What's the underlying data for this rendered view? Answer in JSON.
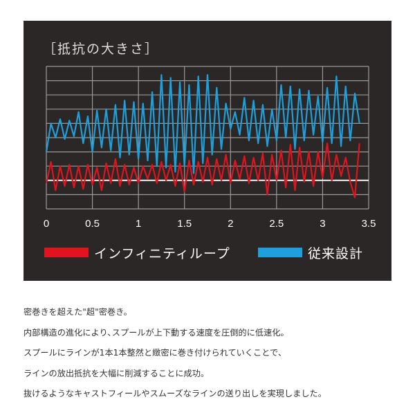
{
  "chart_data": {
    "type": "line",
    "title": "［抵抗の大きさ］",
    "xlabel": "",
    "ylabel": "",
    "xlim": [
      0,
      3.5
    ],
    "ylim": [
      0,
      10
    ],
    "x_ticks": [
      "0",
      "0.5",
      "1",
      "1.5",
      "2",
      "2.5",
      "3",
      "3.5"
    ],
    "grid": true,
    "reference_line_y": 2,
    "legend_placement": "bottom",
    "background_color": "#2b2726",
    "series": [
      {
        "name": "インフィニティループ",
        "color": "#e0141e",
        "x": [
          0,
          0.05,
          0.1,
          0.15,
          0.2,
          0.25,
          0.3,
          0.35,
          0.4,
          0.45,
          0.5,
          0.55,
          0.6,
          0.65,
          0.7,
          0.75,
          0.8,
          0.85,
          0.9,
          0.95,
          1.0,
          1.05,
          1.1,
          1.15,
          1.2,
          1.25,
          1.3,
          1.35,
          1.4,
          1.45,
          1.5,
          1.55,
          1.6,
          1.65,
          1.7,
          1.75,
          1.8,
          1.85,
          1.9,
          1.95,
          2.0,
          2.05,
          2.1,
          2.15,
          2.2,
          2.25,
          2.3,
          2.35,
          2.4,
          2.45,
          2.5,
          2.55,
          2.6,
          2.65,
          2.7,
          2.75,
          2.8,
          2.85,
          2.9,
          2.95,
          3.0,
          3.05,
          3.1,
          3.15,
          3.2,
          3.25,
          3.3,
          3.35,
          3.4
        ],
        "values": [
          1.8,
          3.3,
          1.3,
          3.0,
          1.6,
          3.1,
          1.5,
          3.0,
          1.4,
          3.1,
          1.7,
          2.9,
          1.3,
          3.2,
          1.8,
          3.5,
          1.6,
          3.1,
          1.7,
          2.9,
          1.8,
          3.0,
          2.1,
          3.1,
          1.8,
          3.3,
          2.0,
          3.1,
          1.6,
          3.2,
          1.2,
          3.4,
          1.7,
          3.3,
          1.9,
          3.6,
          1.7,
          3.5,
          2.0,
          3.8,
          1.8,
          3.4,
          2.1,
          3.7,
          1.8,
          3.6,
          2.0,
          3.9,
          1.0,
          3.8,
          2.0,
          4.1,
          1.5,
          4.5,
          1.3,
          4.3,
          1.9,
          4.0,
          1.6,
          4.0,
          2.2,
          4.6,
          2.0,
          3.8,
          2.3,
          3.6,
          1.9,
          0.8,
          4.6
        ]
      },
      {
        "name": "従来設計",
        "color": "#1ea0dc",
        "x": [
          0,
          0.05,
          0.1,
          0.15,
          0.2,
          0.25,
          0.3,
          0.35,
          0.4,
          0.45,
          0.5,
          0.55,
          0.6,
          0.65,
          0.7,
          0.75,
          0.8,
          0.85,
          0.9,
          0.95,
          1.0,
          1.05,
          1.1,
          1.15,
          1.2,
          1.25,
          1.3,
          1.35,
          1.4,
          1.45,
          1.5,
          1.55,
          1.6,
          1.65,
          1.7,
          1.75,
          1.8,
          1.85,
          1.9,
          1.95,
          2.0,
          2.05,
          2.1,
          2.15,
          2.2,
          2.25,
          2.3,
          2.35,
          2.4,
          2.45,
          2.5,
          2.55,
          2.6,
          2.65,
          2.7,
          2.75,
          2.8,
          2.85,
          2.9,
          2.95,
          3.0,
          3.05,
          3.1,
          3.15,
          3.2,
          3.25,
          3.3,
          3.35,
          3.4
        ],
        "values": [
          4.0,
          6.0,
          5.0,
          6.3,
          4.9,
          6.2,
          5.1,
          6.8,
          4.6,
          6.5,
          4.0,
          6.9,
          4.3,
          7.0,
          4.1,
          7.3,
          3.6,
          7.6,
          3.8,
          7.5,
          3.5,
          7.4,
          3.4,
          8.2,
          3.0,
          9.4,
          2.9,
          9.2,
          2.6,
          8.9,
          3.0,
          8.7,
          2.5,
          9.3,
          3.2,
          9.4,
          3.8,
          8.5,
          4.2,
          7.4,
          5.6,
          6.8,
          5.2,
          7.8,
          4.8,
          7.6,
          4.6,
          7.3,
          4.4,
          7.0,
          4.8,
          8.7,
          5.0,
          8.6,
          4.2,
          8.4,
          4.8,
          8.3,
          5.2,
          7.9,
          4.7,
          8.5,
          4.6,
          9.3,
          4.4,
          8.6,
          4.8,
          8.1,
          6.0
        ]
      }
    ]
  },
  "description": {
    "lines": [
      "密巻きを超えた\"超\"密巻き。",
      "内部構造の進化により､スプールが上下動する速度を圧倒的に低速化。",
      "スプールにラインが1本1本整然と緻密に巻き付けられていくことで､",
      "ラインの放出抵抗を大幅に削減することに成功。",
      "抜けるようなキャストフィールやスムーズなラインの送り出しを実現しました。"
    ]
  }
}
